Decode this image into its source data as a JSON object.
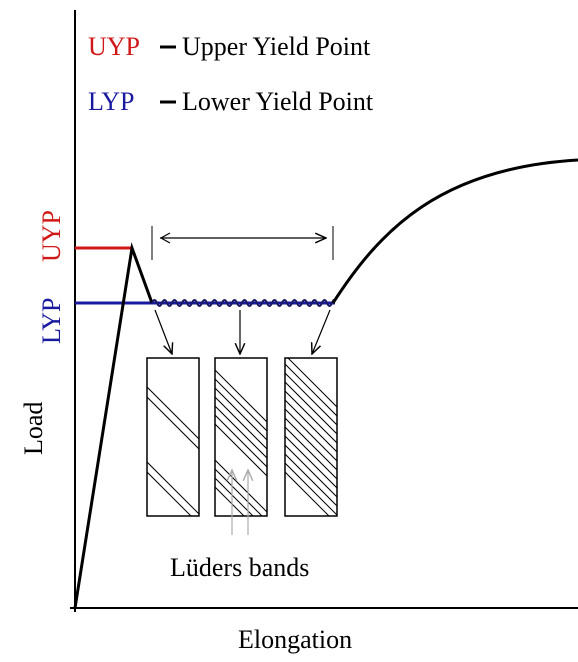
{
  "legend": [
    {
      "abbr": "UYP",
      "text": "Upper Yield Point"
    },
    {
      "abbr": "LYP",
      "text": "Lower Yield Point"
    }
  ],
  "levels": {
    "upper": "UYP",
    "lower": "LYP"
  },
  "axes": {
    "y": "Load",
    "x": "Elongation"
  },
  "bands_label": "Lüders bands"
}
